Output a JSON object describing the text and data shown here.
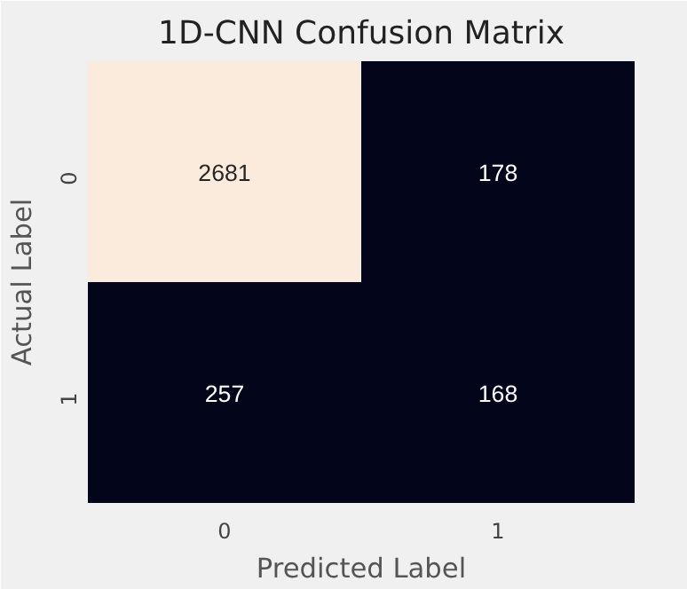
{
  "chart_data": {
    "type": "heatmap",
    "title": "1D-CNN Confusion Matrix",
    "xlabel": "Predicted Label",
    "ylabel": "Actual Label",
    "categories": [
      "0",
      "1"
    ],
    "y_categories": [
      "0",
      "1"
    ],
    "data_labels": true,
    "cells": [
      [
        2681,
        178
      ],
      [
        257,
        168
      ]
    ]
  }
}
